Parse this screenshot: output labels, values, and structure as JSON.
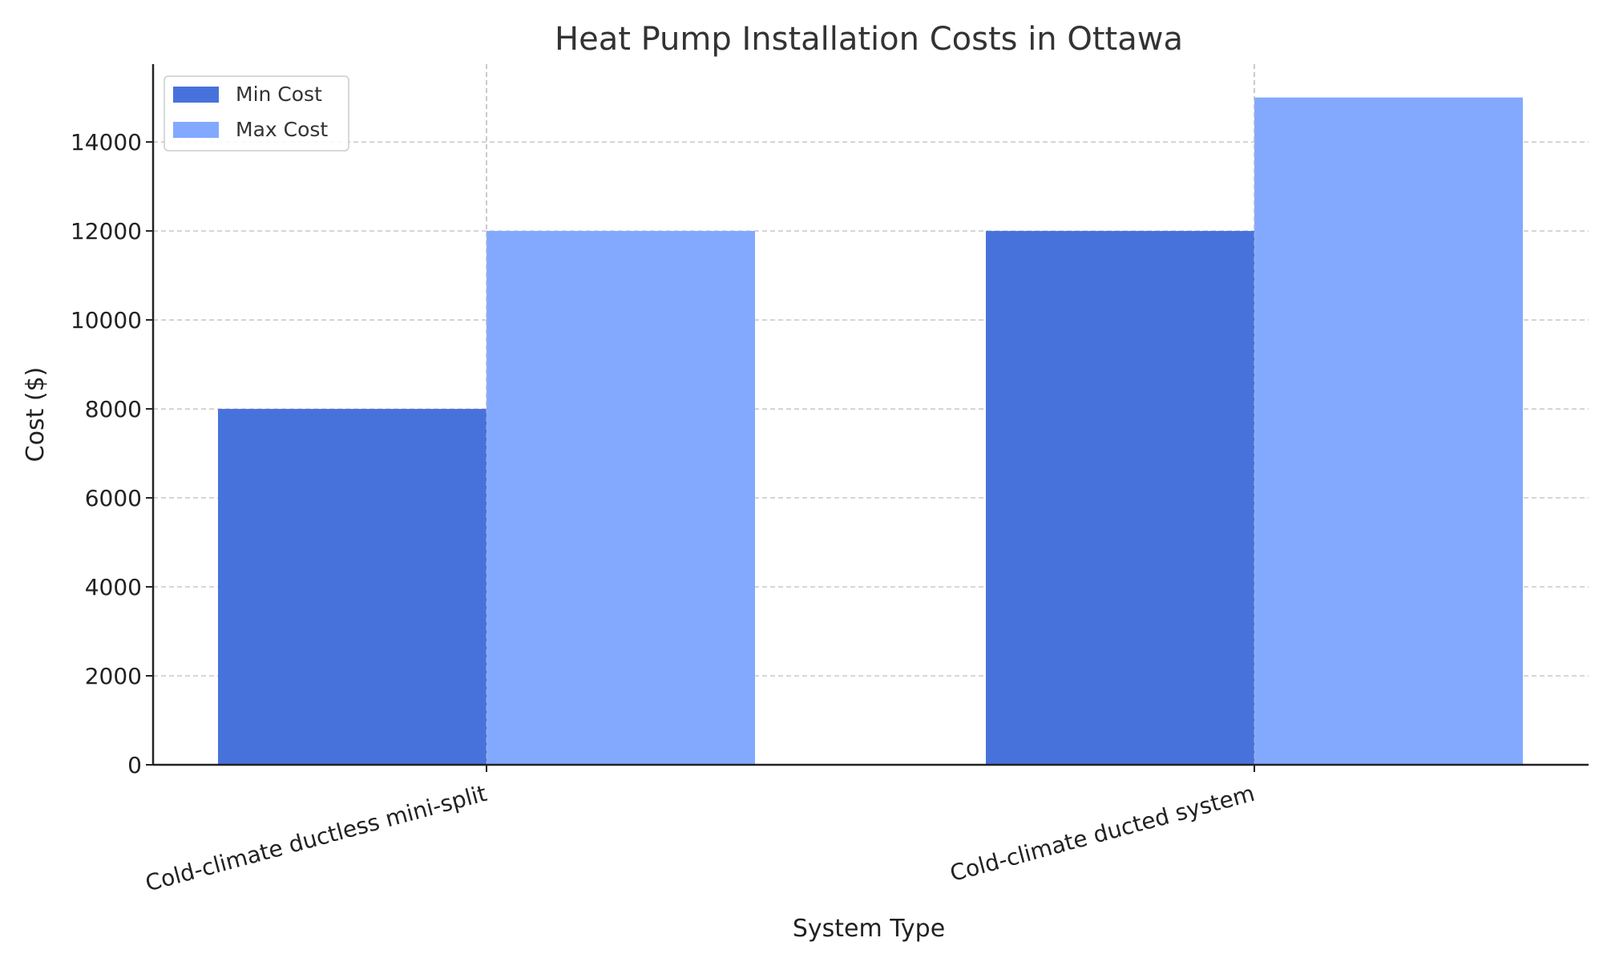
{
  "chart_data": {
    "type": "bar",
    "title": "Heat Pump Installation Costs in Ottawa",
    "xlabel": "System Type",
    "ylabel": "Cost ($)",
    "categories": [
      "Cold-climate ductless mini-split",
      "Cold-climate ducted system"
    ],
    "series": [
      {
        "name": "Min Cost",
        "values": [
          8000,
          12000
        ],
        "color": "#4872DB"
      },
      {
        "name": "Max Cost",
        "values": [
          12000,
          15000
        ],
        "color": "#83A9FF"
      }
    ],
    "ylim": [
      0,
      15750
    ],
    "yticks": [
      0,
      2000,
      4000,
      6000,
      8000,
      10000,
      12000,
      14000
    ],
    "grid": true,
    "legend_position": "top-left"
  }
}
